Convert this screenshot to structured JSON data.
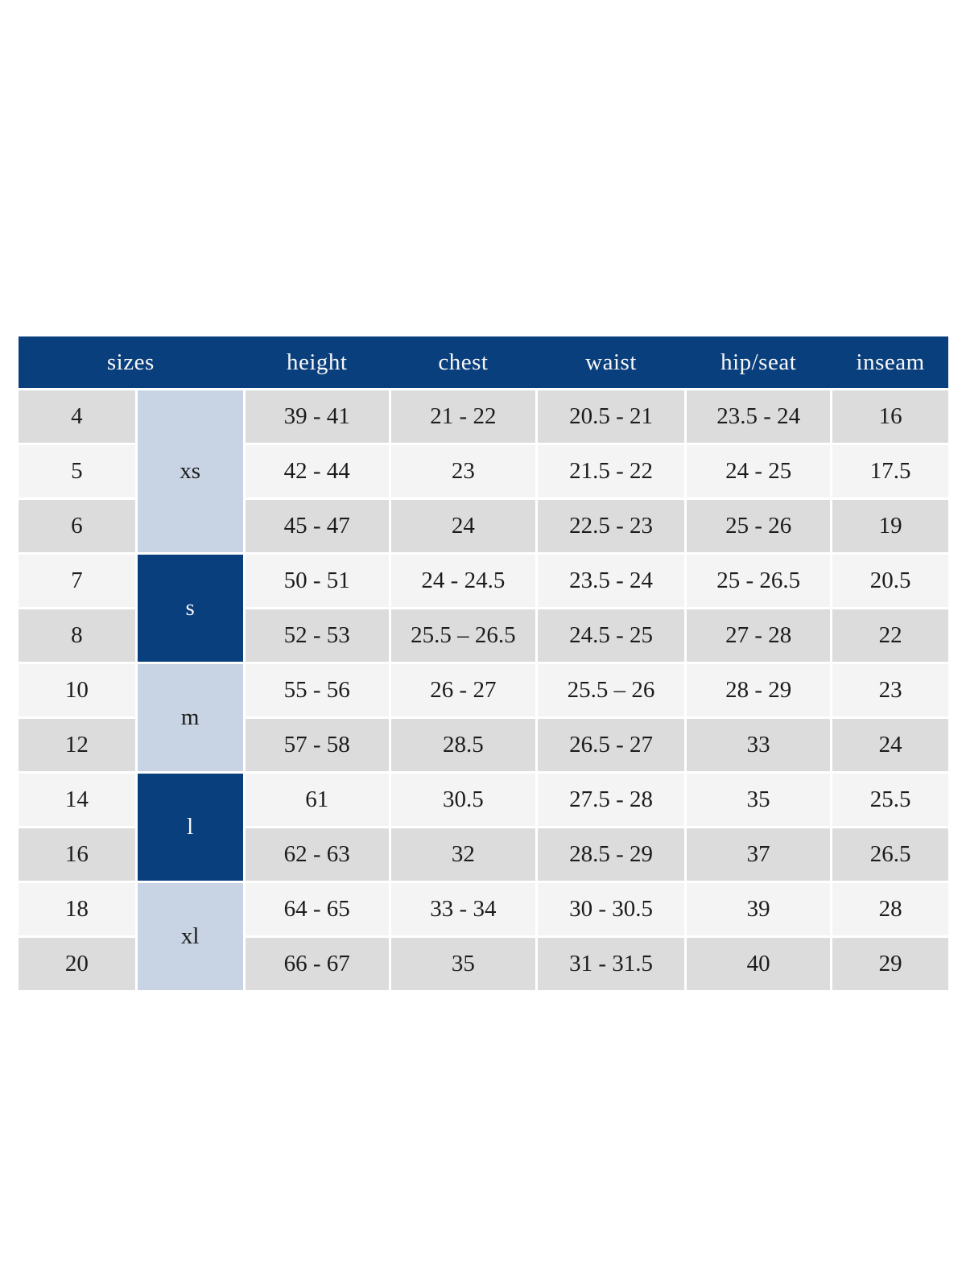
{
  "chart_data": {
    "type": "table",
    "columns": [
      "sizes",
      "height",
      "chest",
      "waist",
      "hip/seat",
      "inseam"
    ],
    "size_groups": [
      {
        "label": "xs",
        "sizes": [
          "4",
          "5",
          "6"
        ],
        "shade": "light"
      },
      {
        "label": "s",
        "sizes": [
          "7",
          "8"
        ],
        "shade": "dark"
      },
      {
        "label": "m",
        "sizes": [
          "10",
          "12"
        ],
        "shade": "light"
      },
      {
        "label": "l",
        "sizes": [
          "14",
          "16"
        ],
        "shade": "dark"
      },
      {
        "label": "xl",
        "sizes": [
          "18",
          "20"
        ],
        "shade": "light"
      }
    ],
    "rows": [
      {
        "size": "4",
        "group": "xs",
        "height": "39 - 41",
        "chest": "21 - 22",
        "waist": "20.5 - 21",
        "hip_seat": "23.5 - 24",
        "inseam": "16"
      },
      {
        "size": "5",
        "group": "xs",
        "height": "42 - 44",
        "chest": "23",
        "waist": "21.5 - 22",
        "hip_seat": "24 - 25",
        "inseam": "17.5"
      },
      {
        "size": "6",
        "group": "xs",
        "height": "45 - 47",
        "chest": "24",
        "waist": "22.5 - 23",
        "hip_seat": "25 - 26",
        "inseam": "19"
      },
      {
        "size": "7",
        "group": "s",
        "height": "50 - 51",
        "chest": "24 - 24.5",
        "waist": "23.5 - 24",
        "hip_seat": "25 - 26.5",
        "inseam": "20.5"
      },
      {
        "size": "8",
        "group": "s",
        "height": "52 - 53",
        "chest": "25.5 – 26.5",
        "waist": "24.5 - 25",
        "hip_seat": "27 - 28",
        "inseam": "22"
      },
      {
        "size": "10",
        "group": "m",
        "height": "55 - 56",
        "chest": "26 - 27",
        "waist": "25.5 – 26",
        "hip_seat": "28 - 29",
        "inseam": "23"
      },
      {
        "size": "12",
        "group": "m",
        "height": "57 - 58",
        "chest": "28.5",
        "waist": "26.5 - 27",
        "hip_seat": "33",
        "inseam": "24"
      },
      {
        "size": "14",
        "group": "l",
        "height": "61",
        "chest": "30.5",
        "waist": "27.5 - 28",
        "hip_seat": "35",
        "inseam": "25.5"
      },
      {
        "size": "16",
        "group": "l",
        "height": "62 - 63",
        "chest": "32",
        "waist": "28.5 - 29",
        "hip_seat": "37",
        "inseam": "26.5"
      },
      {
        "size": "18",
        "group": "xl",
        "height": "64 - 65",
        "chest": "33 - 34",
        "waist": "30 - 30.5",
        "hip_seat": "39",
        "inseam": "28"
      },
      {
        "size": "20",
        "group": "xl",
        "height": "66 - 67",
        "chest": "35",
        "waist": "31 - 31.5",
        "hip_seat": "40",
        "inseam": "29"
      }
    ],
    "colors": {
      "header_bg": "#0a3f7d",
      "group_dark_bg": "#0a3f7d",
      "group_light_bg": "#c8d4e3",
      "row_gray_bg": "#dcdcdc",
      "row_light_bg": "#f4f4f4",
      "cell_text": "#1c1c1c",
      "header_text": "#f7f7f7"
    },
    "layout": {
      "legend_position": "none",
      "grid": "white 3px gaps between cells",
      "header_span_note": "sizes header spans the size-number and size-group columns"
    }
  }
}
